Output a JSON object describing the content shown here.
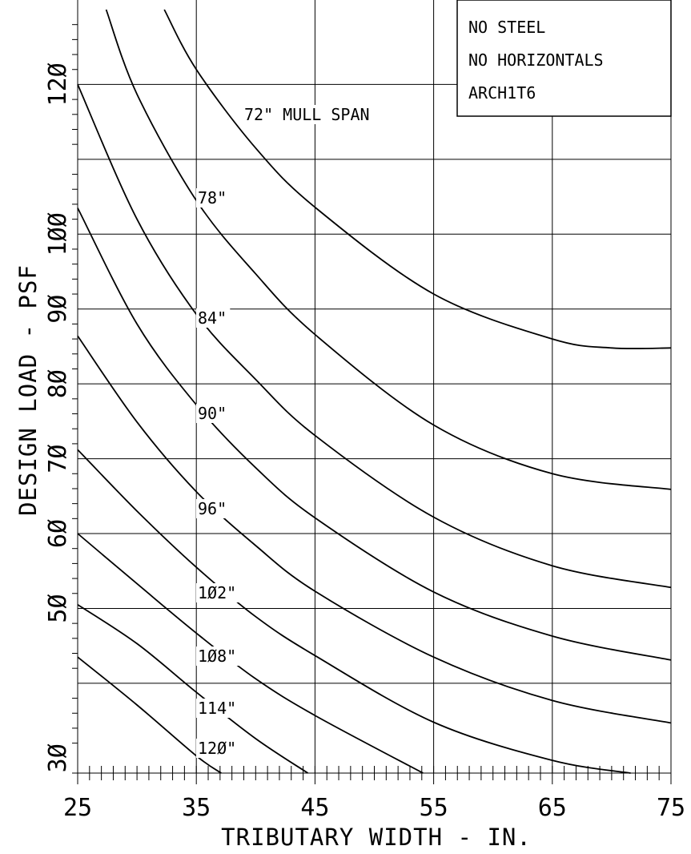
{
  "chart_data": {
    "type": "line",
    "xlabel": "TRIBUTARY WIDTH - IN.",
    "ylabel": "DESIGN LOAD - PSF",
    "xlim": [
      25,
      75
    ],
    "ylim": [
      28,
      130
    ],
    "x_tick_labels": [
      "25",
      "35",
      "45",
      "55",
      "65",
      "75"
    ],
    "y_tick_labels": [
      "3Ø",
      "5Ø",
      "6Ø",
      "7Ø",
      "8Ø",
      "9Ø",
      "1ØØ",
      "12Ø"
    ],
    "y_tick_values": [
      30,
      50,
      60,
      70,
      80,
      90,
      100,
      120
    ],
    "grid": true,
    "legend_box": [
      "NO STEEL",
      "NO HORIZONTALS",
      "ARCH1T6"
    ],
    "series": [
      {
        "name": "72\" MULL SPAN",
        "x": [
          32.3,
          35,
          40,
          45,
          55,
          65,
          70,
          75
        ],
        "y": [
          130,
          122,
          111.5,
          103.6,
          92,
          86,
          84.8,
          84.8
        ]
      },
      {
        "name": "78\"",
        "x": [
          27.4,
          30,
          35,
          40,
          45,
          55,
          65,
          75
        ],
        "y": [
          130,
          118.7,
          104.5,
          94.7,
          86.6,
          74.5,
          68,
          65.9
        ]
      },
      {
        "name": "84\"",
        "x": [
          25,
          30,
          35,
          40,
          45,
          55,
          65,
          75
        ],
        "y": [
          120,
          102,
          89.3,
          80.6,
          73.1,
          62.2,
          55.7,
          52.8
        ]
      },
      {
        "name": "90\"",
        "x": [
          25,
          30,
          35,
          40,
          45,
          55,
          65,
          75
        ],
        "y": [
          103.5,
          88,
          77.2,
          68.8,
          62.1,
          52.2,
          46.3,
          43.1
        ]
      },
      {
        "name": "96\"",
        "x": [
          25,
          30,
          35,
          40,
          45,
          55,
          65,
          75
        ],
        "y": [
          86.4,
          74.9,
          65.6,
          58.4,
          52.3,
          43.5,
          37.7,
          34.7
        ]
      },
      {
        "name": "1Ø2\"",
        "x": [
          25,
          30,
          35,
          40,
          45,
          55,
          65,
          71.6
        ],
        "y": [
          71.2,
          63,
          55.5,
          48.9,
          43.7,
          34.8,
          29.7,
          28
        ]
      },
      {
        "name": "1Ø8\"",
        "x": [
          25,
          30,
          35,
          40,
          45,
          54.1
        ],
        "y": [
          60,
          53.3,
          46.7,
          40.6,
          35.7,
          28
        ]
      },
      {
        "name": "114\"",
        "x": [
          25,
          30,
          35,
          40,
          44.4
        ],
        "y": [
          50.5,
          45.3,
          38.8,
          32.6,
          28
        ]
      },
      {
        "name": "12Ø\"",
        "x": [
          25,
          30,
          35,
          37.1
        ],
        "y": [
          43.5,
          37.1,
          30.3,
          28
        ]
      }
    ]
  }
}
